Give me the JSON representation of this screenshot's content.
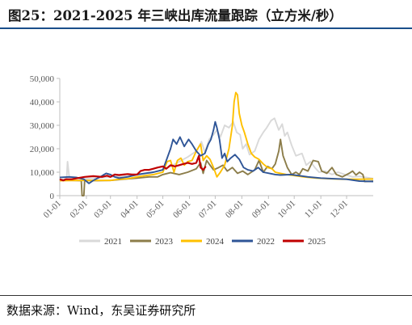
{
  "title": "图25：2021-2025 年三峡出库流量跟踪（立方米/秒）",
  "source": "数据来源：Wind，东吴证券研究所",
  "chart_data": {
    "type": "line",
    "title": "图25：2021-2025 年三峡出库流量跟踪（立方米/秒）",
    "xlabel": "",
    "ylabel": "",
    "ylim": [
      0,
      50000
    ],
    "yticks": [
      0,
      10000,
      20000,
      30000,
      40000,
      50000
    ],
    "ytick_labels": [
      "0",
      "10,000",
      "20,000",
      "30,000",
      "40,000",
      "50,000"
    ],
    "xtick_labels": [
      "01-01",
      "02-01",
      "03-01",
      "04-01",
      "05-01",
      "06-01",
      "07-01",
      "08-01",
      "09-01",
      "10-01",
      "11-01",
      "12-01"
    ],
    "xtick_days": [
      1,
      32,
      60,
      91,
      121,
      152,
      182,
      213,
      244,
      274,
      305,
      335
    ],
    "xlim_days": [
      1,
      366
    ],
    "grid": false,
    "legend_position": "bottom",
    "legend": [
      "2021",
      "2023",
      "2024",
      "2022",
      "2025"
    ],
    "series": [
      {
        "name": "2021",
        "color": "#d9d9d9",
        "points": [
          [
            1,
            6800
          ],
          [
            5,
            7000
          ],
          [
            9,
            7200
          ],
          [
            10,
            14500
          ],
          [
            12,
            8000
          ],
          [
            18,
            7500
          ],
          [
            30,
            7200
          ],
          [
            45,
            7500
          ],
          [
            60,
            8000
          ],
          [
            75,
            8200
          ],
          [
            91,
            8800
          ],
          [
            105,
            9500
          ],
          [
            121,
            11000
          ],
          [
            130,
            12500
          ],
          [
            140,
            14500
          ],
          [
            150,
            16500
          ],
          [
            160,
            19000
          ],
          [
            166,
            23000
          ],
          [
            170,
            18500
          ],
          [
            175,
            24000
          ],
          [
            180,
            26000
          ],
          [
            184,
            28000
          ],
          [
            188,
            25000
          ],
          [
            193,
            30000
          ],
          [
            198,
            29000
          ],
          [
            203,
            31500
          ],
          [
            207,
            27000
          ],
          [
            211,
            26000
          ],
          [
            214,
            20000
          ],
          [
            218,
            22000
          ],
          [
            222,
            17500
          ],
          [
            228,
            19000
          ],
          [
            233,
            24000
          ],
          [
            238,
            27000
          ],
          [
            242,
            29000
          ],
          [
            247,
            32000
          ],
          [
            251,
            33000
          ],
          [
            256,
            28000
          ],
          [
            260,
            30500
          ],
          [
            263,
            25500
          ],
          [
            266,
            27000
          ],
          [
            271,
            21500
          ],
          [
            276,
            17000
          ],
          [
            283,
            18000
          ],
          [
            288,
            13000
          ],
          [
            293,
            14500
          ],
          [
            298,
            12000
          ],
          [
            303,
            10000
          ],
          [
            310,
            10500
          ],
          [
            318,
            9000
          ],
          [
            325,
            10000
          ],
          [
            333,
            9000
          ],
          [
            342,
            8000
          ],
          [
            350,
            8200
          ],
          [
            366,
            7300
          ]
        ]
      },
      {
        "name": "2023",
        "color": "#8c7d4a",
        "points": [
          [
            1,
            6500
          ],
          [
            15,
            6500
          ],
          [
            26,
            6400
          ],
          [
            27,
            0
          ],
          [
            29,
            0
          ],
          [
            30,
            6500
          ],
          [
            45,
            6400
          ],
          [
            60,
            6500
          ],
          [
            75,
            7000
          ],
          [
            91,
            7500
          ],
          [
            105,
            8000
          ],
          [
            115,
            8000
          ],
          [
            121,
            9000
          ],
          [
            130,
            9800
          ],
          [
            140,
            9000
          ],
          [
            150,
            10000
          ],
          [
            160,
            11500
          ],
          [
            165,
            14000
          ],
          [
            168,
            9500
          ],
          [
            172,
            15000
          ],
          [
            176,
            13000
          ],
          [
            180,
            11000
          ],
          [
            186,
            12000
          ],
          [
            191,
            13000
          ],
          [
            196,
            10500
          ],
          [
            202,
            12000
          ],
          [
            208,
            9500
          ],
          [
            214,
            10500
          ],
          [
            220,
            9000
          ],
          [
            228,
            11000
          ],
          [
            233,
            15000
          ],
          [
            238,
            10000
          ],
          [
            243,
            12500
          ],
          [
            248,
            11500
          ],
          [
            252,
            13500
          ],
          [
            256,
            19000
          ],
          [
            258,
            24000
          ],
          [
            261,
            17000
          ],
          [
            266,
            12000
          ],
          [
            271,
            9000
          ],
          [
            276,
            10000
          ],
          [
            280,
            9000
          ],
          [
            284,
            11500
          ],
          [
            290,
            10500
          ],
          [
            296,
            15000
          ],
          [
            302,
            14500
          ],
          [
            306,
            10500
          ],
          [
            312,
            9500
          ],
          [
            318,
            12000
          ],
          [
            323,
            9000
          ],
          [
            330,
            8000
          ],
          [
            338,
            9500
          ],
          [
            342,
            10500
          ],
          [
            346,
            8800
          ],
          [
            350,
            10000
          ],
          [
            354,
            9000
          ],
          [
            356,
            6000
          ],
          [
            366,
            6200
          ]
        ]
      },
      {
        "name": "2024",
        "color": "#ffc000",
        "points": [
          [
            1,
            6400
          ],
          [
            20,
            6500
          ],
          [
            40,
            6500
          ],
          [
            60,
            6500
          ],
          [
            70,
            7000
          ],
          [
            80,
            7200
          ],
          [
            91,
            8000
          ],
          [
            100,
            8500
          ],
          [
            110,
            9000
          ],
          [
            121,
            10000
          ],
          [
            126,
            14500
          ],
          [
            130,
            15000
          ],
          [
            134,
            10000
          ],
          [
            138,
            15000
          ],
          [
            142,
            16000
          ],
          [
            146,
            13000
          ],
          [
            150,
            14500
          ],
          [
            155,
            15000
          ],
          [
            160,
            19000
          ],
          [
            165,
            22000
          ],
          [
            168,
            15000
          ],
          [
            172,
            17000
          ],
          [
            176,
            15500
          ],
          [
            180,
            12000
          ],
          [
            184,
            8000
          ],
          [
            188,
            10000
          ],
          [
            193,
            13000
          ],
          [
            198,
            20000
          ],
          [
            202,
            30000
          ],
          [
            204,
            40000
          ],
          [
            206,
            44000
          ],
          [
            208,
            43000
          ],
          [
            210,
            35000
          ],
          [
            213,
            30000
          ],
          [
            216,
            27000
          ],
          [
            220,
            22000
          ],
          [
            224,
            18000
          ],
          [
            228,
            16500
          ],
          [
            233,
            15500
          ],
          [
            238,
            13500
          ],
          [
            243,
            12000
          ],
          [
            248,
            11500
          ],
          [
            252,
            10000
          ],
          [
            258,
            9500
          ],
          [
            265,
            9000
          ],
          [
            275,
            8500
          ],
          [
            285,
            8000
          ],
          [
            300,
            7500
          ],
          [
            315,
            7200
          ],
          [
            330,
            7000
          ],
          [
            350,
            7000
          ],
          [
            366,
            7100
          ]
        ]
      },
      {
        "name": "2022",
        "color": "#2f5597",
        "points": [
          [
            1,
            7800
          ],
          [
            12,
            8000
          ],
          [
            20,
            7800
          ],
          [
            29,
            7000
          ],
          [
            35,
            5200
          ],
          [
            40,
            6500
          ],
          [
            48,
            8000
          ],
          [
            55,
            9500
          ],
          [
            60,
            9000
          ],
          [
            65,
            8000
          ],
          [
            70,
            7500
          ],
          [
            80,
            8000
          ],
          [
            91,
            9000
          ],
          [
            100,
            9500
          ],
          [
            110,
            10000
          ],
          [
            121,
            11000
          ],
          [
            126,
            16000
          ],
          [
            130,
            20000
          ],
          [
            133,
            24000
          ],
          [
            137,
            22000
          ],
          [
            141,
            25000
          ],
          [
            146,
            21000
          ],
          [
            151,
            24000
          ],
          [
            155,
            22000
          ],
          [
            160,
            19000
          ],
          [
            165,
            17000
          ],
          [
            170,
            18000
          ],
          [
            174,
            22000
          ],
          [
            177,
            24000
          ],
          [
            180,
            28000
          ],
          [
            182,
            31500
          ],
          [
            184,
            29000
          ],
          [
            187,
            24000
          ],
          [
            190,
            16000
          ],
          [
            193,
            18000
          ],
          [
            196,
            14500
          ],
          [
            200,
            16000
          ],
          [
            205,
            17500
          ],
          [
            210,
            15500
          ],
          [
            215,
            12000
          ],
          [
            220,
            11000
          ],
          [
            226,
            10500
          ],
          [
            232,
            12000
          ],
          [
            238,
            10000
          ],
          [
            245,
            9500
          ],
          [
            252,
            9000
          ],
          [
            258,
            8800
          ],
          [
            270,
            9000
          ],
          [
            280,
            8500
          ],
          [
            290,
            8000
          ],
          [
            305,
            7500
          ],
          [
            320,
            7200
          ],
          [
            335,
            7000
          ],
          [
            350,
            6200
          ],
          [
            366,
            6000
          ]
        ]
      },
      {
        "name": "2025",
        "color": "#c00000",
        "points": [
          [
            1,
            7000
          ],
          [
            5,
            6500
          ],
          [
            8,
            7000
          ],
          [
            15,
            7000
          ],
          [
            22,
            7500
          ],
          [
            30,
            8000
          ],
          [
            40,
            8300
          ],
          [
            50,
            8000
          ],
          [
            56,
            8500
          ],
          [
            60,
            8000
          ],
          [
            65,
            9000
          ],
          [
            70,
            8800
          ],
          [
            75,
            9000
          ],
          [
            80,
            9200
          ],
          [
            85,
            9000
          ],
          [
            91,
            9000
          ],
          [
            95,
            10500
          ],
          [
            100,
            11000
          ],
          [
            105,
            11000
          ],
          [
            110,
            11500
          ],
          [
            115,
            12000
          ],
          [
            121,
            12500
          ],
          [
            125,
            11500
          ],
          [
            130,
            13000
          ],
          [
            135,
            12500
          ],
          [
            140,
            13000
          ],
          [
            145,
            13500
          ],
          [
            150,
            14000
          ],
          [
            155,
            13500
          ],
          [
            160,
            14000
          ],
          [
            163,
            17000
          ],
          [
            165,
            12000
          ],
          [
            168,
            11000
          ],
          [
            171,
            12500
          ]
        ]
      }
    ]
  }
}
